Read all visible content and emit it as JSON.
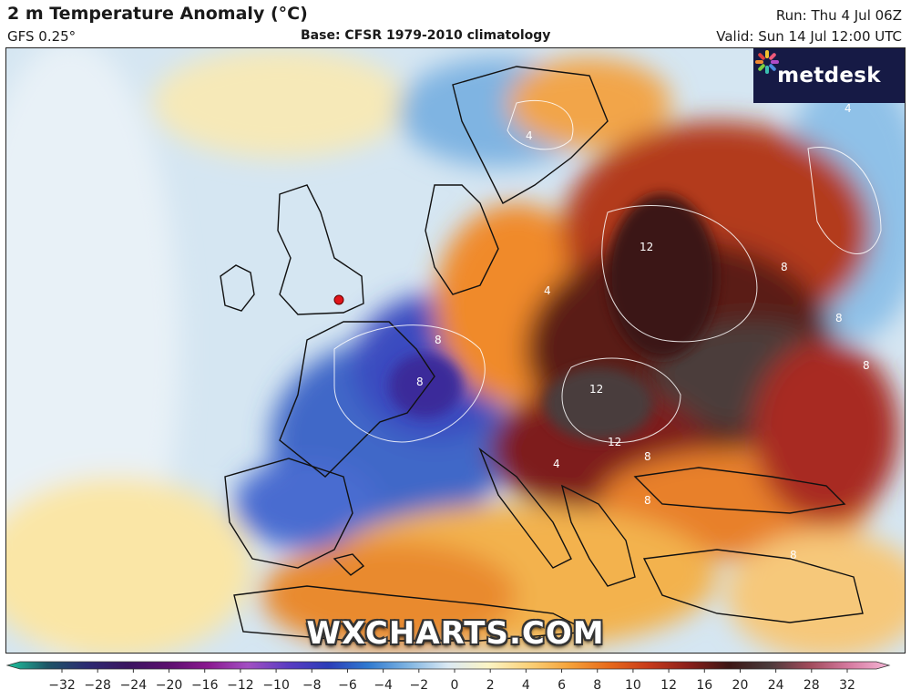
{
  "header": {
    "title": "2 m Temperature Anomaly (°C)",
    "model": "GFS 0.25°",
    "base": "Base: CFSR 1979-2010 climatology",
    "run": "Run: Thu 4 Jul 06Z",
    "valid": "Valid: Sun 14 Jul 12:00 UTC"
  },
  "brand": {
    "logo": "metdesk",
    "logo_icon": "flower-burst-icon",
    "watermark": "WXCHARTS.COM"
  },
  "colorbar": {
    "ticks": [
      "−32",
      "−28",
      "−24",
      "−20",
      "−16",
      "−12",
      "−10",
      "−8",
      "−6",
      "−4",
      "−2",
      "0",
      "2",
      "4",
      "6",
      "8",
      "10",
      "12",
      "16",
      "20",
      "24",
      "28",
      "32"
    ],
    "colors": [
      "#1ec49d",
      "#1e5566",
      "#2c2a72",
      "#3a1560",
      "#5b0f6e",
      "#8a188f",
      "#a24fc2",
      "#5a3cc2",
      "#2b3cb8",
      "#2f7ad0",
      "#7fb4e2",
      "#dbe9f3",
      "#fbf4c4",
      "#fbd27a",
      "#f5a33a",
      "#e86a1a",
      "#c73a1a",
      "#8a1f1a",
      "#3c1614",
      "#4a3a3a",
      "#a04a5a",
      "#d67aa0",
      "#f5b6d6"
    ]
  },
  "map_labels": [
    {
      "text": "12"
    },
    {
      "text": "12"
    },
    {
      "text": "12"
    },
    {
      "text": "8"
    },
    {
      "text": "8"
    },
    {
      "text": "8"
    },
    {
      "text": "8"
    },
    {
      "text": "8"
    },
    {
      "text": "4"
    },
    {
      "text": "4"
    },
    {
      "text": "4"
    },
    {
      "text": "4"
    },
    {
      "text": "8"
    },
    {
      "text": "8"
    },
    {
      "text": "8"
    }
  ],
  "marker": {
    "color": "#e0141a"
  }
}
